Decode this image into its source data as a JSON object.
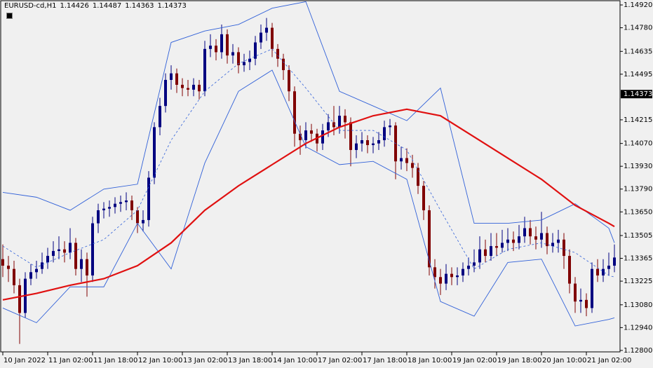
{
  "chart_data": {
    "type": "candlestick",
    "title": "EURUSD-cd,H1",
    "header_values": [
      1.14426,
      1.14487,
      1.14363,
      1.14373
    ],
    "categories": [
      "10 Jan 2022",
      null,
      null,
      null,
      null,
      null,
      null,
      null,
      "11 Jan 02:00",
      null,
      null,
      null,
      null,
      null,
      null,
      null,
      "11 Jan 18:00",
      null,
      null,
      null,
      null,
      null,
      null,
      null,
      "12 Jan 10:00",
      null,
      null,
      null,
      null,
      null,
      null,
      null,
      "13 Jan 02:00",
      null,
      null,
      null,
      null,
      null,
      null,
      null,
      "13 Jan 18:00",
      null,
      null,
      null,
      null,
      null,
      null,
      null,
      "14 Jan 10:00",
      null,
      null,
      null,
      null,
      null,
      null,
      null,
      "17 Jan 02:00",
      null,
      null,
      null,
      null,
      null,
      null,
      null,
      "17 Jan 18:00",
      null,
      null,
      null,
      null,
      null,
      null,
      null,
      "18 Jan 10:00",
      null,
      null,
      null,
      null,
      null,
      null,
      null,
      "19 Jan 02:00",
      null,
      null,
      null,
      null,
      null,
      null,
      null,
      "19 Jan 18:00",
      null,
      null,
      null,
      null,
      null,
      null,
      null,
      "20 Jan 10:00",
      null,
      null,
      null,
      null,
      null,
      null,
      null,
      "21 Jan 02:00",
      null,
      null,
      null,
      null,
      null
    ],
    "open": [
      1.1336,
      1.1332,
      1.133,
      1.132,
      1.1303,
      1.1324,
      1.1328,
      1.133,
      1.1334,
      1.1338,
      1.1341,
      1.1342,
      1.134,
      1.1346,
      1.133,
      1.1336,
      1.1326,
      1.1358,
      1.1366,
      1.1367,
      1.1368,
      1.137,
      1.1371,
      1.1372,
      1.1366,
      1.1358,
      1.136,
      1.1386,
      1.1417,
      1.143,
      1.1446,
      1.145,
      1.1443,
      1.1441,
      1.144,
      1.1443,
      1.1439,
      1.1465,
      1.1467,
      1.1463,
      1.1474,
      1.1461,
      1.1463,
      1.1455,
      1.1457,
      1.1459,
      1.1469,
      1.1475,
      1.1478,
      1.1465,
      1.1459,
      1.1452,
      1.1439,
      1.1413,
      1.1409,
      1.1415,
      1.1413,
      1.1407,
      1.1415,
      1.142,
      1.1417,
      1.1424,
      1.142,
      1.1403,
      1.1407,
      1.1409,
      1.1406,
      1.1407,
      1.1409,
      1.1417,
      1.1418,
      1.1396,
      1.1398,
      1.1395,
      1.1392,
      1.1381,
      1.1366,
      1.1331,
      1.1325,
      1.1321,
      1.1327,
      1.1325,
      1.1326,
      1.133,
      1.1332,
      1.1334,
      1.1342,
      1.1338,
      1.1344,
      1.1343,
      1.1346,
      1.1348,
      1.1346,
      1.135,
      1.1355,
      1.135,
      1.1348,
      1.1352,
      1.1344,
      1.1346,
      1.1348,
      1.1338,
      1.1321,
      1.131,
      1.1311,
      1.1306,
      1.133,
      1.1326,
      1.133,
      1.1332
    ],
    "high": [
      1.1345,
      1.1338,
      1.1335,
      1.1324,
      1.1328,
      1.1333,
      1.1335,
      1.134,
      1.1343,
      1.1347,
      1.135,
      1.1347,
      1.1355,
      1.1349,
      1.1342,
      1.134,
      1.1362,
      1.137,
      1.1371,
      1.1372,
      1.1374,
      1.1375,
      1.1377,
      1.1375,
      1.1368,
      1.1366,
      1.139,
      1.142,
      1.1435,
      1.145,
      1.1455,
      1.1453,
      1.1447,
      1.1446,
      1.1447,
      1.1446,
      1.147,
      1.1474,
      1.1471,
      1.148,
      1.1477,
      1.1468,
      1.1466,
      1.1462,
      1.1464,
      1.1473,
      1.148,
      1.1484,
      1.1481,
      1.1468,
      1.1462,
      1.1455,
      1.1442,
      1.1418,
      1.142,
      1.1419,
      1.1416,
      1.1419,
      1.1425,
      1.143,
      1.143,
      1.1428,
      1.1423,
      1.1412,
      1.1414,
      1.1412,
      1.1411,
      1.1414,
      1.1421,
      1.1422,
      1.142,
      1.1405,
      1.1404,
      1.14,
      1.1395,
      1.1384,
      1.1369,
      1.1336,
      1.133,
      1.1333,
      1.1331,
      1.1331,
      1.1334,
      1.1337,
      1.1342,
      1.135,
      1.1348,
      1.1352,
      1.1352,
      1.1354,
      1.1355,
      1.1353,
      1.1357,
      1.1362,
      1.136,
      1.1356,
      1.1365,
      1.1356,
      1.1352,
      1.1354,
      1.1352,
      1.1342,
      1.1325,
      1.1318,
      1.1315,
      1.1334,
      1.1336,
      1.1336,
      1.134,
      1.1345
    ],
    "low": [
      1.1325,
      1.1322,
      1.1315,
      1.1284,
      1.13,
      1.132,
      1.1324,
      1.1327,
      1.133,
      1.1334,
      1.1336,
      1.1334,
      1.1336,
      1.1326,
      1.1322,
      1.1313,
      1.1322,
      1.1352,
      1.1361,
      1.1362,
      1.1364,
      1.1365,
      1.1366,
      1.136,
      1.1352,
      1.1353,
      1.1356,
      1.1382,
      1.1412,
      1.1426,
      1.144,
      1.1438,
      1.1436,
      1.1436,
      1.1436,
      1.1434,
      1.1436,
      1.146,
      1.1458,
      1.1459,
      1.1456,
      1.1456,
      1.145,
      1.1451,
      1.1452,
      1.1455,
      1.1465,
      1.147,
      1.146,
      1.1454,
      1.1446,
      1.1433,
      1.1405,
      1.14,
      1.1404,
      1.1408,
      1.1402,
      1.1403,
      1.1411,
      1.1412,
      1.1413,
      1.141,
      1.1393,
      1.1398,
      1.1402,
      1.1401,
      1.1401,
      1.1403,
      1.1405,
      1.1412,
      1.1385,
      1.1391,
      1.139,
      1.1386,
      1.1376,
      1.136,
      1.1326,
      1.1318,
      1.1314,
      1.1317,
      1.132,
      1.132,
      1.1322,
      1.1326,
      1.1328,
      1.133,
      1.1334,
      1.1335,
      1.1338,
      1.134,
      1.1341,
      1.1341,
      1.1342,
      1.1346,
      1.1345,
      1.1342,
      1.1343,
      1.1339,
      1.134,
      1.134,
      1.133,
      1.1315,
      1.1303,
      1.1303,
      1.1301,
      1.1303,
      1.1322,
      1.1322,
      1.1326,
      1.1328
    ],
    "close": [
      1.1332,
      1.133,
      1.132,
      1.1303,
      1.1324,
      1.1328,
      1.133,
      1.1334,
      1.1338,
      1.1341,
      1.1342,
      1.134,
      1.1346,
      1.133,
      1.1336,
      1.1326,
      1.1358,
      1.1366,
      1.1367,
      1.1368,
      1.137,
      1.1371,
      1.1372,
      1.1366,
      1.1358,
      1.136,
      1.1386,
      1.1417,
      1.143,
      1.1446,
      1.145,
      1.1443,
      1.1441,
      1.144,
      1.1443,
      1.1439,
      1.1465,
      1.1467,
      1.1463,
      1.1474,
      1.1461,
      1.1463,
      1.1455,
      1.1457,
      1.1459,
      1.1469,
      1.1475,
      1.1478,
      1.1465,
      1.1459,
      1.1452,
      1.1439,
      1.1413,
      1.1409,
      1.1415,
      1.1413,
      1.1407,
      1.1415,
      1.142,
      1.1417,
      1.1424,
      1.142,
      1.1403,
      1.1407,
      1.1409,
      1.1406,
      1.1407,
      1.1409,
      1.1417,
      1.1418,
      1.1396,
      1.1398,
      1.1395,
      1.1392,
      1.1381,
      1.1366,
      1.1331,
      1.1325,
      1.1321,
      1.1327,
      1.1325,
      1.1326,
      1.133,
      1.1332,
      1.1334,
      1.1342,
      1.1338,
      1.1344,
      1.1343,
      1.1346,
      1.1348,
      1.1346,
      1.135,
      1.1355,
      1.135,
      1.1348,
      1.1352,
      1.1344,
      1.1346,
      1.1348,
      1.1338,
      1.1321,
      1.131,
      1.1311,
      1.1306,
      1.133,
      1.1326,
      1.133,
      1.1332,
      1.1337
    ],
    "up_color": "#000080",
    "down_color": "#800000",
    "overlays": [
      {
        "x": [
          0,
          6,
          12,
          18,
          24,
          30,
          36,
          42,
          48,
          54,
          60,
          66,
          72,
          78,
          84,
          90,
          96,
          102,
          108,
          109
        ],
        "values": [
          1.1377,
          1.1374,
          1.1366,
          1.1379,
          1.1382,
          1.1469,
          1.1476,
          1.148,
          1.149,
          1.1494,
          1.1439,
          1.143,
          1.1421,
          1.1441,
          1.1358,
          1.1358,
          1.136,
          1.137,
          1.1355,
          1.1346
        ],
        "color": "#3060d8",
        "dashed": false
      },
      {
        "x": [
          0,
          6,
          12,
          18,
          24,
          30,
          36,
          42,
          48,
          54,
          60,
          66,
          72,
          78,
          84,
          90,
          96,
          102,
          108,
          109
        ],
        "values": [
          1.1344,
          1.1331,
          1.134,
          1.1348,
          1.1366,
          1.1409,
          1.1439,
          1.1456,
          1.1465,
          1.1441,
          1.1415,
          1.1415,
          1.1403,
          1.1366,
          1.133,
          1.1342,
          1.1346,
          1.134,
          1.1326,
          1.1325
        ],
        "color": "#3060d8",
        "dashed": true
      },
      {
        "x": [
          0,
          6,
          12,
          18,
          24,
          30,
          36,
          42,
          48,
          54,
          60,
          66,
          72,
          78,
          84,
          90,
          96,
          102,
          108,
          109
        ],
        "values": [
          1.1306,
          1.1297,
          1.1319,
          1.1319,
          1.1358,
          1.133,
          1.1395,
          1.1439,
          1.1452,
          1.1405,
          1.1394,
          1.1396,
          1.1385,
          1.131,
          1.1301,
          1.1334,
          1.1336,
          1.1295,
          1.1299,
          1.13
        ],
        "color": "#3060d8",
        "dashed": false
      },
      {
        "x": [
          0,
          6,
          12,
          18,
          24,
          30,
          36,
          42,
          48,
          54,
          60,
          66,
          72,
          78,
          84,
          90,
          96,
          102,
          108,
          109
        ],
        "values": [
          1.1311,
          1.1315,
          1.132,
          1.1324,
          1.1332,
          1.1346,
          1.1366,
          1.1381,
          1.1394,
          1.1407,
          1.1417,
          1.1424,
          1.1428,
          1.1424,
          1.1411,
          1.1398,
          1.1385,
          1.1369,
          1.1358,
          1.1356
        ],
        "color": "#e01010",
        "dashed": false
      }
    ],
    "ylim": [
      1.12791,
      1.14946
    ],
    "yticks": [
      {
        "value": 1.1492,
        "label": "1.14920"
      },
      {
        "value": 1.1478,
        "label": "1.14780"
      },
      {
        "value": 1.14635,
        "label": "1.14635"
      },
      {
        "value": 1.14495,
        "label": "1.14495"
      },
      {
        "value": 1.14215,
        "label": "1.14215"
      },
      {
        "value": 1.1407,
        "label": "1.14070"
      },
      {
        "value": 1.1393,
        "label": "1.13930"
      },
      {
        "value": 1.1379,
        "label": "1.13790"
      },
      {
        "value": 1.1365,
        "label": "1.13650"
      },
      {
        "value": 1.13505,
        "label": "1.13505"
      },
      {
        "value": 1.13365,
        "label": "1.13365"
      },
      {
        "value": 1.13225,
        "label": "1.13225"
      },
      {
        "value": 1.1308,
        "label": "1.13080"
      },
      {
        "value": 1.1294,
        "label": "1.12940"
      },
      {
        "value": 1.128,
        "label": "1.12800"
      }
    ],
    "current_price": 1.14373,
    "grid": false
  }
}
